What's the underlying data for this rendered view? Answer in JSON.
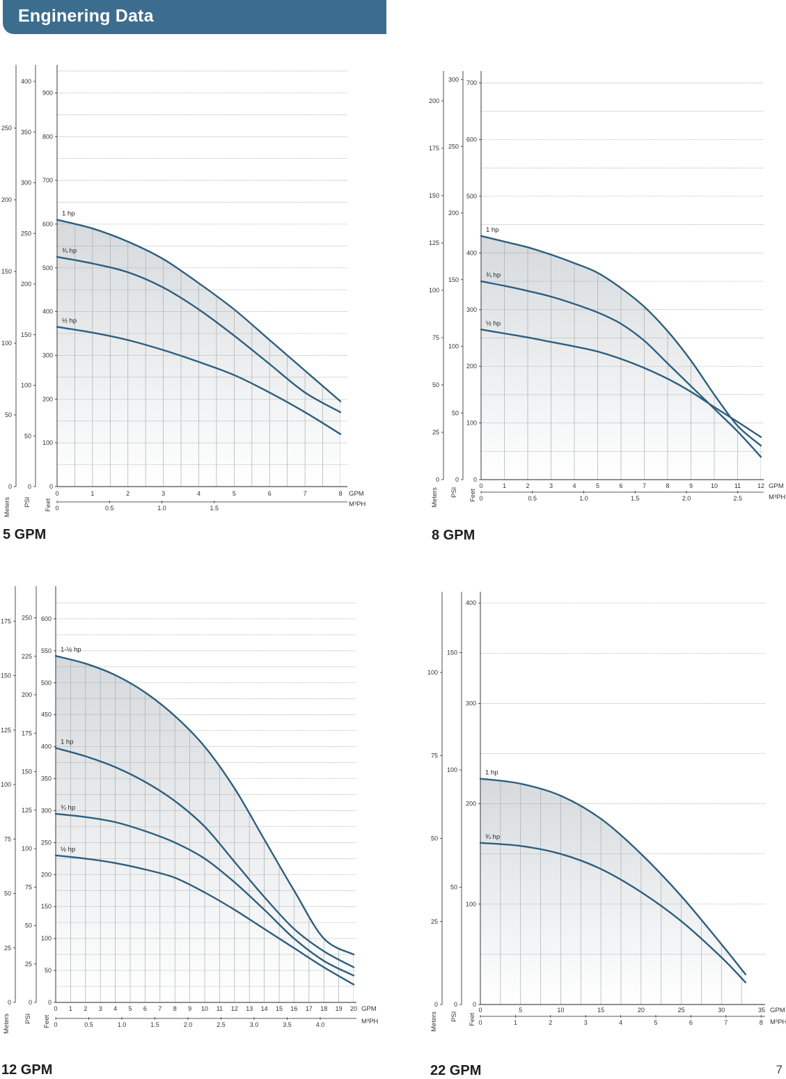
{
  "header": {
    "title": "Enginering Data"
  },
  "page_number": "7",
  "colors": {
    "banner": "#3d6d8e",
    "curve": "#2d5e7e",
    "grid": "#9a9a9a"
  },
  "chart_data": [
    {
      "type": "line",
      "title": "5 GPM",
      "x": {
        "unit": "GPM",
        "range": [
          0,
          8
        ],
        "ticks": [
          0,
          1,
          2,
          3,
          4,
          5,
          6,
          7,
          8
        ]
      },
      "x2": {
        "unit": "M³PH",
        "ticks": [
          0,
          0.5,
          1.0,
          1.5
        ],
        "tick_labels": [
          "0",
          "0.5",
          "1.0",
          "1.5"
        ]
      },
      "y": {
        "unit": "Feet",
        "range": [
          0,
          950
        ],
        "ticks": [
          0,
          100,
          200,
          300,
          400,
          500,
          600,
          700,
          800,
          900
        ]
      },
      "y2": {
        "unit": "PSI",
        "ticks": [
          0,
          50,
          100,
          150,
          200,
          250,
          300,
          350,
          400
        ]
      },
      "y3": {
        "unit": "Meters",
        "ticks": [
          0,
          50,
          100,
          150,
          200,
          250
        ]
      },
      "series": [
        {
          "name": "1 hp",
          "x": [
            0,
            1,
            2,
            3,
            4,
            5,
            6,
            7,
            8
          ],
          "y": [
            610,
            590,
            560,
            520,
            465,
            405,
            335,
            265,
            195
          ]
        },
        {
          "name": "¾ hp",
          "x": [
            0,
            1,
            2,
            3,
            4,
            5,
            6,
            7,
            8
          ],
          "y": [
            525,
            510,
            490,
            455,
            405,
            345,
            280,
            215,
            170
          ]
        },
        {
          "name": "½ hp",
          "x": [
            0,
            1,
            2,
            3,
            4,
            5,
            6,
            7,
            8
          ],
          "y": [
            365,
            352,
            335,
            312,
            285,
            255,
            215,
            170,
            120
          ]
        }
      ]
    },
    {
      "type": "line",
      "title": "8 GPM",
      "x": {
        "unit": "GPM",
        "range": [
          0,
          12
        ],
        "ticks": [
          0,
          1,
          2,
          3,
          4,
          5,
          6,
          7,
          8,
          9,
          10,
          11,
          12
        ]
      },
      "x2": {
        "unit": "M³PH",
        "ticks": [
          0,
          0.5,
          1.0,
          1.5,
          2.0,
          2.5
        ],
        "tick_labels": [
          "0",
          "0.5",
          "1.0",
          "1.5",
          "2.0",
          "2.5"
        ]
      },
      "y": {
        "unit": "Feet",
        "range": [
          0,
          710
        ],
        "ticks": [
          0,
          100,
          200,
          300,
          400,
          500,
          600,
          700
        ]
      },
      "y2": {
        "unit": "PSI",
        "ticks": [
          0,
          50,
          100,
          150,
          200,
          250,
          300
        ]
      },
      "y3": {
        "unit": "Meters",
        "ticks": [
          0,
          25,
          50,
          75,
          100,
          125,
          150,
          175,
          200
        ]
      },
      "series": [
        {
          "name": "1 hp",
          "x": [
            0,
            1,
            2,
            3,
            4,
            5,
            6,
            7,
            8,
            9,
            10,
            11,
            12
          ],
          "y": [
            430,
            420,
            410,
            397,
            382,
            365,
            338,
            305,
            262,
            210,
            150,
            95,
            60
          ]
        },
        {
          "name": "¾ hp",
          "x": [
            0,
            1,
            2,
            3,
            4,
            5,
            6,
            7,
            8,
            9,
            10,
            11,
            12
          ],
          "y": [
            350,
            342,
            333,
            323,
            310,
            295,
            275,
            245,
            205,
            165,
            125,
            85,
            40
          ]
        },
        {
          "name": "½ hp",
          "x": [
            0,
            1,
            2,
            3,
            4,
            5,
            6,
            7,
            8,
            9,
            10,
            11,
            12
          ],
          "y": [
            265,
            258,
            251,
            243,
            235,
            226,
            213,
            197,
            178,
            155,
            128,
            102,
            75
          ]
        }
      ]
    },
    {
      "type": "line",
      "title": "12 GPM",
      "x": {
        "unit": "GPM",
        "range": [
          0,
          20
        ],
        "ticks": [
          0,
          1,
          2,
          3,
          4,
          5,
          6,
          7,
          8,
          9,
          10,
          11,
          12,
          13,
          14,
          15,
          16,
          17,
          18,
          19,
          20
        ]
      },
      "x2": {
        "unit": "M³PH",
        "ticks": [
          0,
          0.5,
          1.0,
          1.5,
          2.0,
          2.5,
          3.0,
          3.5,
          4.0
        ],
        "tick_labels": [
          "0",
          "0.5",
          "1.0",
          "1.5",
          "2.0",
          "2.5",
          "3.0",
          "3.5",
          "4.0"
        ]
      },
      "y": {
        "unit": "Feet",
        "range": [
          0,
          625
        ],
        "ticks": [
          0,
          50,
          100,
          150,
          200,
          250,
          300,
          350,
          400,
          450,
          500,
          550,
          600
        ]
      },
      "y2": {
        "unit": "PSI",
        "ticks": [
          0,
          25,
          50,
          75,
          100,
          125,
          150,
          175,
          200,
          225,
          250
        ]
      },
      "y3": {
        "unit": "Meters",
        "ticks": [
          0,
          25,
          50,
          75,
          100,
          125,
          150,
          175
        ]
      },
      "series": [
        {
          "name": "1-½ hp",
          "x": [
            0,
            2,
            4,
            6,
            8,
            10,
            12,
            14,
            16,
            18,
            20
          ],
          "y": [
            542,
            530,
            512,
            485,
            448,
            400,
            335,
            255,
            175,
            100,
            75
          ]
        },
        {
          "name": "1 hp",
          "x": [
            0,
            2,
            4,
            6,
            8,
            10,
            12,
            14,
            16,
            18,
            20
          ],
          "y": [
            398,
            385,
            368,
            345,
            315,
            275,
            220,
            165,
            115,
            80,
            55
          ]
        },
        {
          "name": "¾ hp",
          "x": [
            0,
            2,
            4,
            6,
            8,
            10,
            12,
            14,
            16,
            18,
            20
          ],
          "y": [
            295,
            290,
            282,
            268,
            250,
            225,
            188,
            145,
            100,
            65,
            42
          ]
        },
        {
          "name": "½ hp",
          "x": [
            0,
            2,
            4,
            6,
            8,
            10,
            12,
            14,
            16,
            18,
            20
          ],
          "y": [
            230,
            225,
            218,
            208,
            195,
            172,
            145,
            115,
            85,
            55,
            28
          ]
        }
      ]
    },
    {
      "type": "line",
      "title": "22 GPM",
      "x": {
        "unit": "GPM",
        "range": [
          0,
          35
        ],
        "ticks": [
          0,
          5,
          10,
          15,
          20,
          25,
          30,
          35
        ]
      },
      "x2": {
        "unit": "M³PH",
        "ticks": [
          0,
          1,
          2,
          3,
          4,
          5,
          6,
          7,
          8
        ],
        "tick_labels": [
          "0",
          "1",
          "2",
          "3",
          "4",
          "5",
          "6",
          "7",
          "8"
        ]
      },
      "y": {
        "unit": "Feet",
        "range": [
          0,
          405
        ],
        "ticks": [
          0,
          100,
          200,
          300,
          400
        ]
      },
      "y2": {
        "unit": "PSI",
        "ticks": [
          0,
          50,
          100,
          150
        ]
      },
      "y3": {
        "unit": "Meters",
        "ticks": [
          0,
          25,
          50,
          75,
          100
        ]
      },
      "series": [
        {
          "name": "1 hp",
          "x": [
            0,
            5,
            10,
            15,
            20,
            25,
            30,
            33
          ],
          "y": [
            225,
            220,
            208,
            185,
            150,
            108,
            60,
            30
          ]
        },
        {
          "name": "¾ hp",
          "x": [
            0,
            5,
            10,
            15,
            20,
            25,
            30,
            33
          ],
          "y": [
            161,
            158,
            150,
            135,
            112,
            83,
            47,
            22
          ]
        }
      ]
    }
  ]
}
